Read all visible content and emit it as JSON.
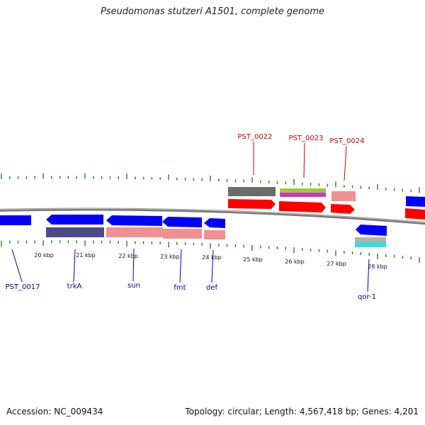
{
  "title": "Pseudomonas stutzeri A1501, complete genome",
  "footer": {
    "accession": "Accession: NC_009434",
    "topology": "Topology: circular; Length: 4,567,418 bp; Genes: 4,201"
  },
  "colors": {
    "backbone": "#7a7a7a",
    "forward_cds": "#ff0000",
    "reverse_cds": "#0000ff",
    "cog_grey": "#6b6b6b",
    "cog_green": "#99cc33",
    "cog_magenta": "#cc33cc",
    "cog_pink": "#f09090",
    "cog_navy": "#4a4a8a",
    "cog_cyan": "#33dddd",
    "cog_silver": "#b0b0b0",
    "tick": "#2e8b2e",
    "forward_label": "#cc0000",
    "reverse_label": "#0000aa"
  },
  "kbp_labels": [
    "20 kbp",
    "21 kbp",
    "22 kbp",
    "23 kbp",
    "24 kbp",
    "25 kbp",
    "26 kbp",
    "27 kbp",
    "28 kbp"
  ],
  "forward_gene_labels": [
    "PST_0022",
    "PST_0023",
    "PST_0024"
  ],
  "reverse_gene_labels": [
    "PST_0017",
    "trkA",
    "sun",
    "fmt",
    "def",
    "qor-1"
  ]
}
